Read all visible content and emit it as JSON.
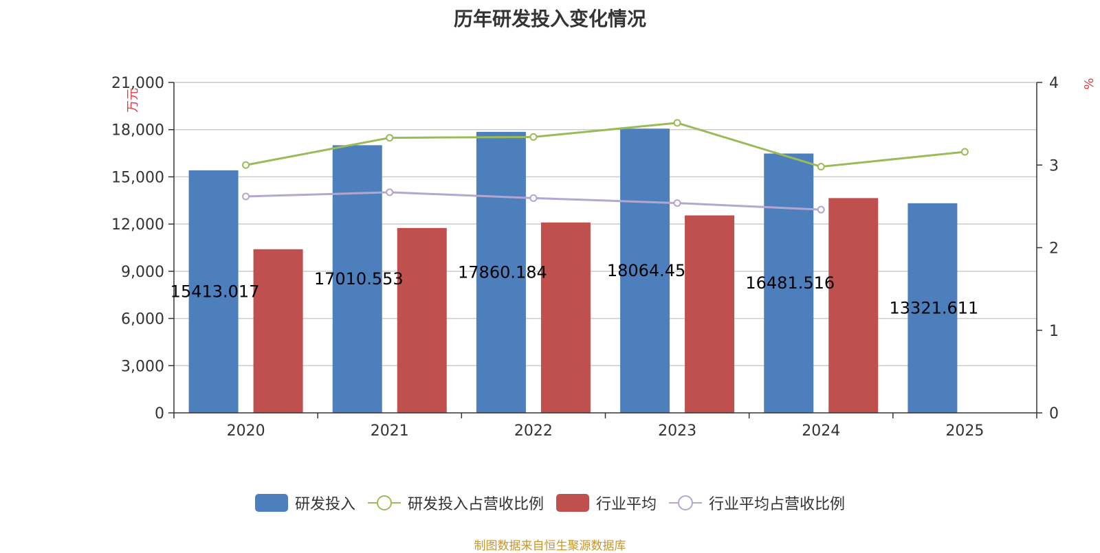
{
  "title": "历年研发投入变化情况",
  "source": "制图数据来自恒生聚源数据库",
  "chart_data": {
    "type": "bar",
    "title": "历年研发投入变化情况",
    "categories": [
      "2020",
      "2021",
      "2022",
      "2023",
      "2024",
      "2025"
    ],
    "y_left": {
      "label": "万元",
      "min": 0,
      "max": 21000,
      "ticks": [
        "0",
        "3,000",
        "6,000",
        "9,000",
        "12,000",
        "15,000",
        "18,000",
        "21,000"
      ]
    },
    "y_right": {
      "label": "%",
      "min": 0,
      "max": 4,
      "ticks": [
        "0",
        "1",
        "2",
        "3",
        "4"
      ]
    },
    "grid": true,
    "legend_position": "bottom",
    "series": [
      {
        "name": "研发投入",
        "type": "bar",
        "axis": "left",
        "color": "#4e7fbd",
        "values": [
          15413.017,
          17010.553,
          17860.184,
          18064.45,
          16481.516,
          13321.611
        ],
        "labels": [
          "15413.017",
          "17010.553",
          "17860.184",
          "18064.45",
          "16481.516",
          "13321.611"
        ]
      },
      {
        "name": "研发投入占营收比例",
        "type": "line",
        "axis": "right",
        "color": "#9bbb59",
        "values": [
          3.0,
          3.33,
          3.34,
          3.51,
          2.98,
          3.16
        ]
      },
      {
        "name": "行业平均",
        "type": "bar",
        "axis": "left",
        "color": "#c0504d",
        "values": [
          10400,
          11750,
          12100,
          12550,
          13650,
          null
        ]
      },
      {
        "name": "行业平均占营收比例",
        "type": "line",
        "axis": "right",
        "color": "#b3a6d1",
        "values": [
          2.62,
          2.67,
          2.6,
          2.54,
          2.46,
          null
        ]
      }
    ]
  }
}
